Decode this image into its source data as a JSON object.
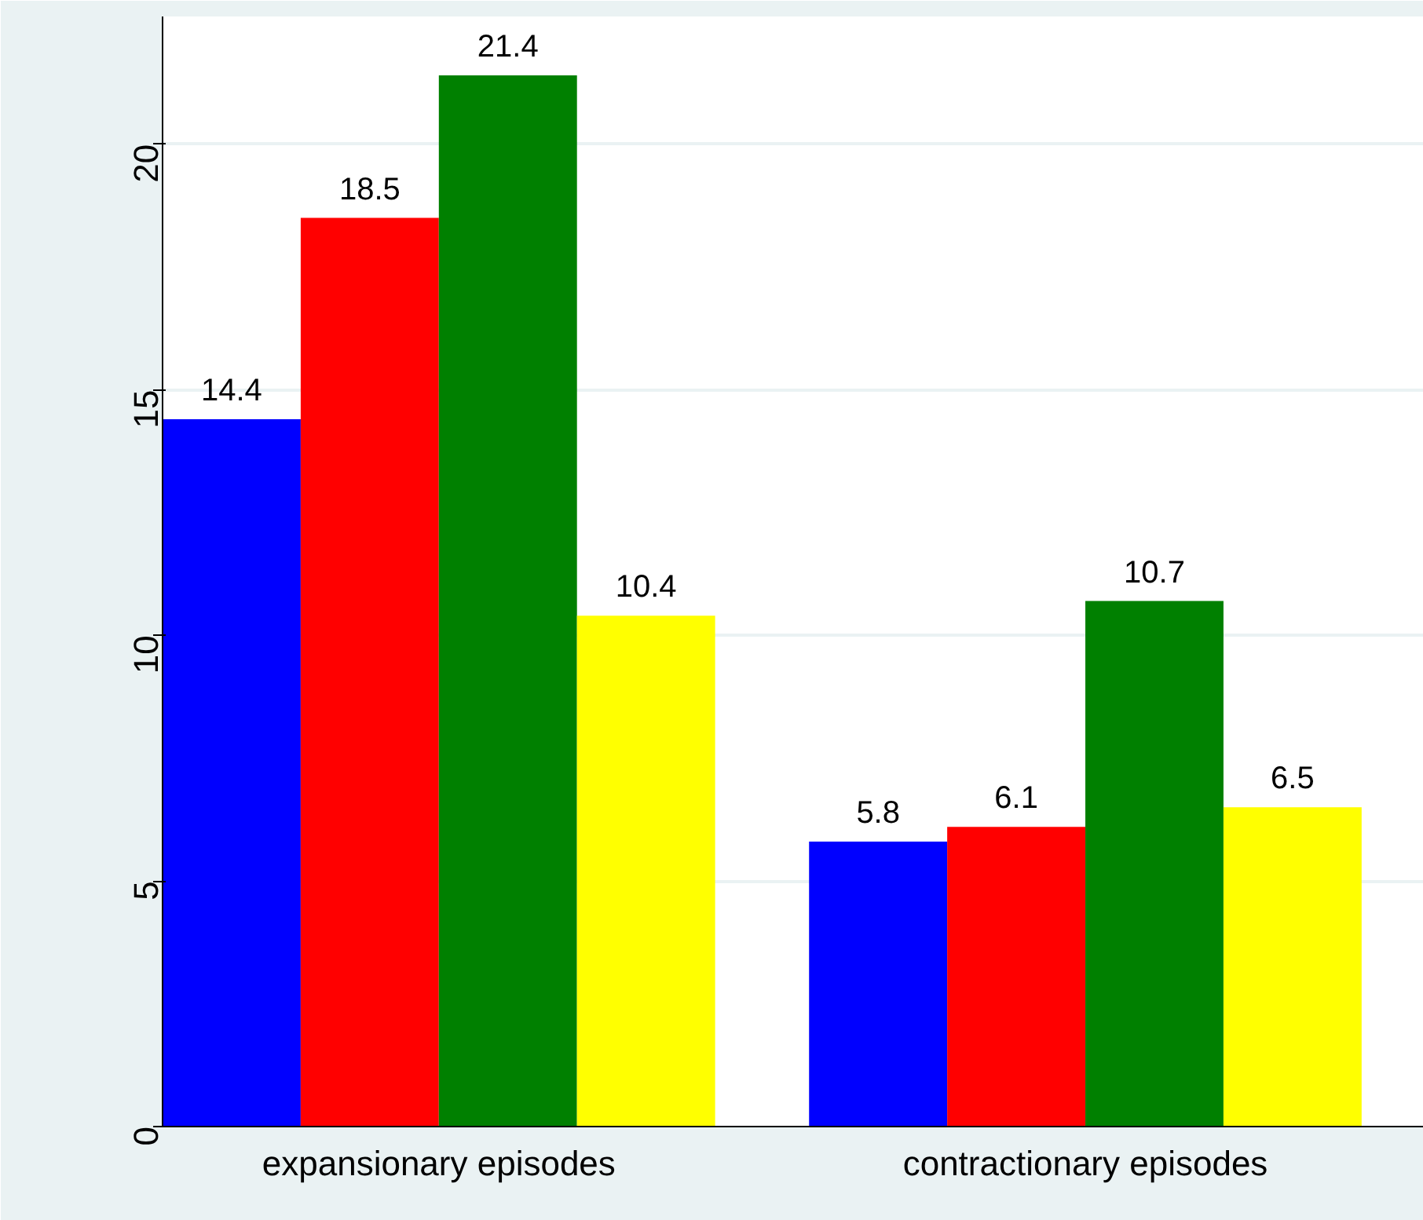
{
  "chart_data": {
    "type": "bar",
    "categories": [
      "expansionary episodes",
      "contractionary episodes"
    ],
    "series": [
      {
        "color": "#0000ff",
        "values": [
          14.4,
          5.8
        ]
      },
      {
        "color": "#ff0000",
        "values": [
          18.5,
          6.1
        ]
      },
      {
        "color": "#008000",
        "values": [
          21.4,
          10.7
        ]
      },
      {
        "color": "#ffff00",
        "values": [
          10.4,
          6.5
        ]
      }
    ],
    "ylim": [
      0,
      22.6
    ],
    "yticks": [
      0,
      5,
      10,
      15,
      20
    ],
    "grid": "y",
    "data_labels": true
  }
}
